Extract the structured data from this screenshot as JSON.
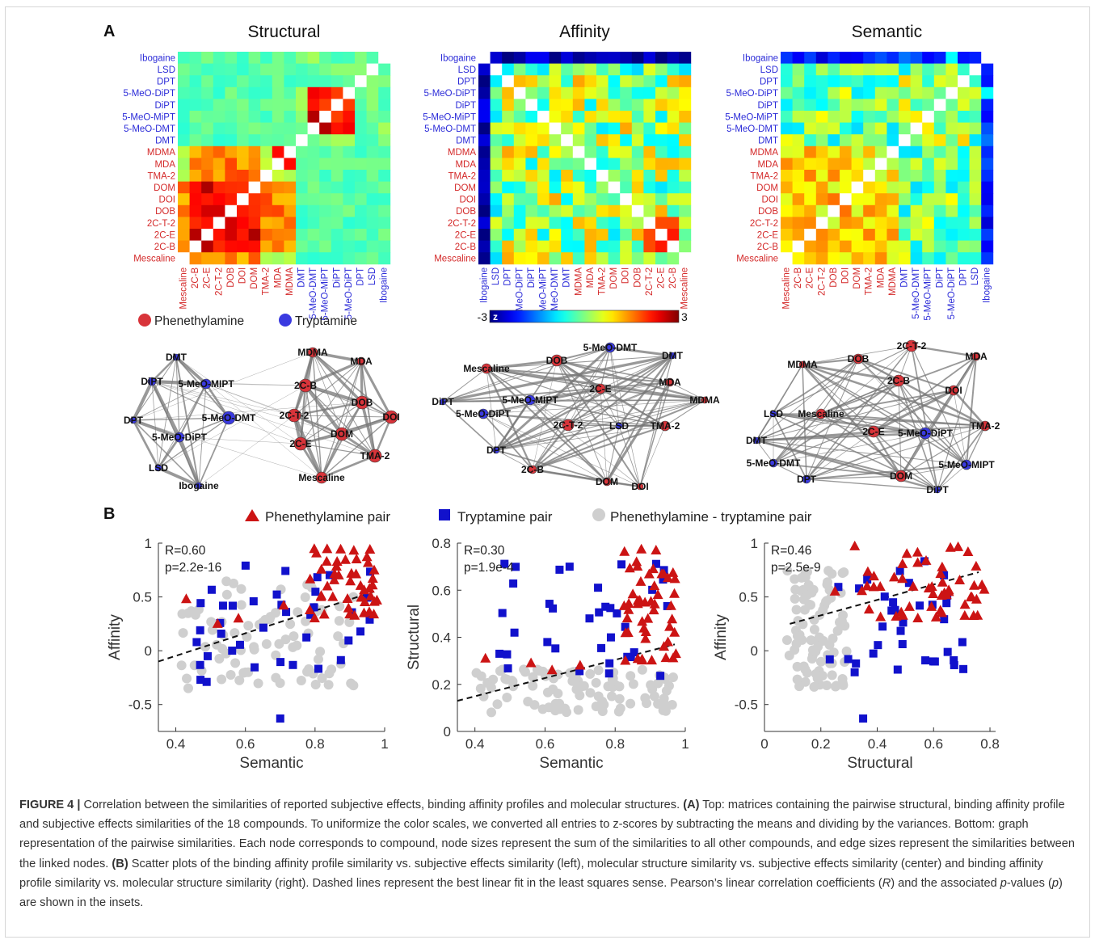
{
  "panel_a_label": "A",
  "panel_b_label": "B",
  "compounds": [
    "Ibogaine",
    "LSD",
    "DPT",
    "5-MeO-DiPT",
    "DiPT",
    "5-MeO-MiPT",
    "5-MeO-DMT",
    "DMT",
    "MDMA",
    "MDA",
    "TMA-2",
    "DOM",
    "DOI",
    "DOB",
    "2C-T-2",
    "2C-E",
    "2C-B",
    "Mescaline"
  ],
  "compound_class": [
    "T",
    "T",
    "T",
    "T",
    "T",
    "T",
    "T",
    "T",
    "P",
    "P",
    "P",
    "P",
    "P",
    "P",
    "P",
    "P",
    "P",
    "P"
  ],
  "colors": {
    "phenethylamine": "#d42a2a",
    "tryptamine": "#2b2bd8",
    "phenethylamine_marker": "#cc1414",
    "tryptamine_marker": "#1111cc",
    "mixed_marker": "#cfcfcf",
    "node_red": "#d8343a",
    "node_blue": "#3a3ae0"
  },
  "matrices": [
    {
      "title": "Structural",
      "axis_order": "reversed",
      "pattern": "structural"
    },
    {
      "title": "Affinity",
      "axis_order": "forward",
      "pattern": "affinity"
    },
    {
      "title": "Semantic",
      "axis_order": "reversed",
      "pattern": "semantic"
    }
  ],
  "colorbar": {
    "min_label": "-3",
    "max_label": "3",
    "z_label": "z",
    "range": [
      -3,
      3
    ]
  },
  "node_legend": {
    "phenethylamine": "Phenethylamine",
    "tryptamine": "Tryptamine"
  },
  "networks": [
    {
      "name": "structural",
      "nodes": [
        {
          "label": "DMT",
          "cls": "T",
          "size": 4
        },
        {
          "label": "DiPT",
          "cls": "T",
          "size": 5
        },
        {
          "label": "5-MeO-MIPT",
          "cls": "T",
          "size": 6
        },
        {
          "label": "DPT",
          "cls": "T",
          "size": 4
        },
        {
          "label": "5-MeO-DMT",
          "cls": "T",
          "size": 8
        },
        {
          "label": "5-MeO-DiPT",
          "cls": "T",
          "size": 6
        },
        {
          "label": "LSD",
          "cls": "T",
          "size": 4
        },
        {
          "label": "Ibogaine",
          "cls": "T",
          "size": 4
        },
        {
          "label": "MDMA",
          "cls": "P",
          "size": 6
        },
        {
          "label": "MDA",
          "cls": "P",
          "size": 5
        },
        {
          "label": "2C-B",
          "cls": "P",
          "size": 8
        },
        {
          "label": "DOB",
          "cls": "P",
          "size": 8
        },
        {
          "label": "2C-T-2",
          "cls": "P",
          "size": 8
        },
        {
          "label": "DOI",
          "cls": "P",
          "size": 8
        },
        {
          "label": "DOM",
          "cls": "P",
          "size": 8
        },
        {
          "label": "2C-E",
          "cls": "P",
          "size": 8
        },
        {
          "label": "TMA-2",
          "cls": "P",
          "size": 8
        },
        {
          "label": "Mescaline",
          "cls": "P",
          "size": 7
        }
      ]
    },
    {
      "name": "affinity",
      "nodes": [
        {
          "label": "5-MeO-DMT",
          "cls": "T",
          "size": 6
        },
        {
          "label": "DMT",
          "cls": "T",
          "size": 4
        },
        {
          "label": "Mescaline",
          "cls": "P",
          "size": 6
        },
        {
          "label": "DOB",
          "cls": "P",
          "size": 7
        },
        {
          "label": "2C-E",
          "cls": "P",
          "size": 6
        },
        {
          "label": "MDA",
          "cls": "P",
          "size": 5
        },
        {
          "label": "MDMA",
          "cls": "P",
          "size": 4
        },
        {
          "label": "DiPT",
          "cls": "T",
          "size": 4
        },
        {
          "label": "5-MeO-MIPT",
          "cls": "T",
          "size": 6
        },
        {
          "label": "5-MeO-DiPT",
          "cls": "T",
          "size": 6
        },
        {
          "label": "2C-T-2",
          "cls": "P",
          "size": 7
        },
        {
          "label": "LSD",
          "cls": "T",
          "size": 4
        },
        {
          "label": "TMA-2",
          "cls": "P",
          "size": 6
        },
        {
          "label": "DPT",
          "cls": "T",
          "size": 4
        },
        {
          "label": "2C-B",
          "cls": "P",
          "size": 5
        },
        {
          "label": "DOM",
          "cls": "P",
          "size": 5
        },
        {
          "label": "DOI",
          "cls": "P",
          "size": 4
        }
      ]
    },
    {
      "name": "semantic",
      "nodes": [
        {
          "label": "2C-T-2",
          "cls": "P",
          "size": 7
        },
        {
          "label": "MDMA",
          "cls": "P",
          "size": 4
        },
        {
          "label": "DOB",
          "cls": "P",
          "size": 6
        },
        {
          "label": "MDA",
          "cls": "P",
          "size": 5
        },
        {
          "label": "2C-B",
          "cls": "P",
          "size": 7
        },
        {
          "label": "DOI",
          "cls": "P",
          "size": 6
        },
        {
          "label": "LSD",
          "cls": "T",
          "size": 4
        },
        {
          "label": "Mescaline",
          "cls": "P",
          "size": 6
        },
        {
          "label": "TMA-2",
          "cls": "P",
          "size": 6
        },
        {
          "label": "2C-E",
          "cls": "P",
          "size": 7
        },
        {
          "label": "5-MeO-DiPT",
          "cls": "T",
          "size": 7
        },
        {
          "label": "DMT",
          "cls": "T",
          "size": 4
        },
        {
          "label": "5-MeO-DMT",
          "cls": "T",
          "size": 5
        },
        {
          "label": "DOM",
          "cls": "P",
          "size": 7
        },
        {
          "label": "5-MeO-MIPT",
          "cls": "T",
          "size": 6
        },
        {
          "label": "DPT",
          "cls": "T",
          "size": 5
        },
        {
          "label": "DiPT",
          "cls": "T",
          "size": 4
        }
      ]
    }
  ],
  "scatter_legend": {
    "phenethylamine": "Phenethylamine pair",
    "tryptamine": "Tryptamine pair",
    "mixed": "Phenethylamine - tryptamine pair"
  },
  "chart_data": [
    {
      "type": "scatter",
      "xlabel": "Semantic",
      "ylabel": "Affinity",
      "xlim": [
        0.35,
        1.0
      ],
      "ylim": [
        -0.75,
        1.0
      ],
      "xticks": [
        "0.4",
        "0.6",
        "0.8",
        "1"
      ],
      "yticks": [
        "1",
        "0.5",
        "0",
        "-0.5"
      ],
      "r_text": "R=0.60",
      "p_text": "p=2.2e-16",
      "fit": [
        [
          0.35,
          -0.1
        ],
        [
          0.97,
          0.55
        ]
      ],
      "seed": 11,
      "clusters": {
        "phenethylamine": {
          "x": [
            0.78,
            0.98
          ],
          "y": [
            0.3,
            0.95
          ],
          "extra": [
            [
              0.43,
              0.48
            ],
            [
              0.52,
              0.25
            ],
            [
              0.58,
              0.3
            ],
            [
              0.71,
              0.42
            ]
          ],
          "n": 46
        },
        "tryptamine": {
          "x": [
            0.46,
            0.96
          ],
          "y": [
            -0.3,
            0.8
          ],
          "extra": [
            [
              0.7,
              -0.63
            ],
            [
              0.46,
              0.08
            ],
            [
              0.47,
              0.19
            ]
          ],
          "n": 36
        },
        "mixed": {
          "x": [
            0.4,
            0.92
          ],
          "y": [
            -0.35,
            0.65
          ],
          "extra": [],
          "n": 85
        }
      }
    },
    {
      "type": "scatter",
      "xlabel": "Semantic",
      "ylabel": "Structural",
      "xlim": [
        0.35,
        1.0
      ],
      "ylim": [
        0.0,
        0.8
      ],
      "xticks": [
        "0.4",
        "0.6",
        "0.8",
        "1"
      ],
      "yticks": [
        "0.8",
        "0.6",
        "0.4",
        "0.2",
        "0"
      ],
      "r_text": "R=0.30",
      "p_text": "p=1.9e-4",
      "fit": [
        [
          0.35,
          0.13
        ],
        [
          0.97,
          0.37
        ]
      ],
      "seed": 29,
      "clusters": {
        "phenethylamine": {
          "x": [
            0.82,
            0.98
          ],
          "y": [
            0.3,
            0.78
          ],
          "extra": [
            [
              0.43,
              0.31
            ],
            [
              0.56,
              0.29
            ],
            [
              0.62,
              0.26
            ],
            [
              0.7,
              0.28
            ]
          ],
          "n": 50
        },
        "tryptamine": {
          "x": [
            0.47,
            0.96
          ],
          "y": [
            0.22,
            0.72
          ],
          "extra": [
            [
              0.47,
              0.33
            ],
            [
              0.67,
              0.7
            ]
          ],
          "n": 34
        },
        "mixed": {
          "x": [
            0.4,
            0.98
          ],
          "y": [
            0.08,
            0.27
          ],
          "extra": [],
          "n": 95
        }
      }
    },
    {
      "type": "scatter",
      "xlabel": "Structural",
      "ylabel": "Affinity",
      "xlim": [
        0.0,
        0.82
      ],
      "ylim": [
        -0.75,
        1.0
      ],
      "xticks": [
        "0",
        "0.2",
        "0.4",
        "0.6",
        "0.8"
      ],
      "yticks": [
        "1",
        "0.5",
        "0",
        "-0.5"
      ],
      "r_text": "R=0.46",
      "p_text": "p=2.5e-9",
      "fit": [
        [
          0.09,
          0.25
        ],
        [
          0.76,
          0.73
        ]
      ],
      "seed": 47,
      "clusters": {
        "phenethylamine": {
          "x": [
            0.3,
            0.78
          ],
          "y": [
            0.3,
            0.98
          ],
          "extra": [
            [
              0.25,
              0.55
            ]
          ],
          "n": 52
        },
        "tryptamine": {
          "x": [
            0.23,
            0.72
          ],
          "y": [
            -0.2,
            0.85
          ],
          "extra": [
            [
              0.35,
              -0.63
            ],
            [
              0.32,
              -0.2
            ]
          ],
          "n": 34
        },
        "mixed": {
          "x": [
            0.08,
            0.3
          ],
          "y": [
            -0.35,
            0.75
          ],
          "extra": [],
          "n": 90
        }
      }
    }
  ],
  "caption": {
    "figure_label": "FIGURE 4 |",
    "title": "Correlation between the similarities of reported subjective effects, binding affinity profiles and molecular structures.",
    "a_label": "(A)",
    "a_text": "Top: matrices containing the pairwise structural, binding affinity profile and subjective effects similarities of the 18 compounds. To uniformize the color scales, we converted all entries to z-scores by subtracting the means and dividing by the variances. Bottom: graph representation of the pairwise similarities. Each node corresponds to compound, node sizes represent the sum of the similarities to all other compounds, and edge sizes represent the similarities between the linked nodes.",
    "b_label": "(B)",
    "b_text_1": "Scatter plots of the binding affinity profile similarity vs. subjective effects similarity (left), molecular structure similarity vs. subjective effects similarity (center) and binding affinity profile similarity vs. molecular structure similarity (right). Dashed lines represent the best linear fit in the least squares sense. Pearson’s linear correlation coefficients (",
    "r_symbol": "R",
    "b_text_2": ") and the associated ",
    "p_symbol": "p",
    "b_text_3": "-values (",
    "p_symbol_2": "p",
    "b_text_4": ") are shown in the insets."
  }
}
